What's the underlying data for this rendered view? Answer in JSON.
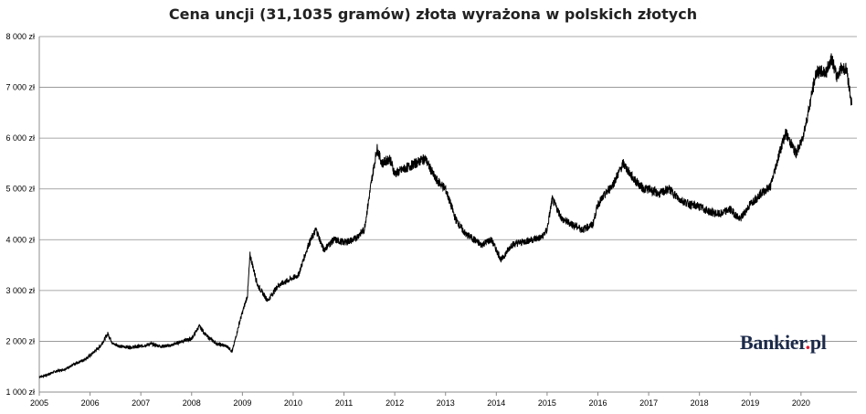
{
  "title": "Cena uncji (31,1035 gramów) złota wyrażona w polskich złotych",
  "brand": {
    "name": "Bankier",
    "dot": ".",
    "suffix": "pl"
  },
  "chart_data": {
    "type": "line",
    "title": "Cena uncji (31,1035 gramów) złota wyrażona w polskich złotych",
    "xlabel": "",
    "ylabel": "",
    "xlim": [
      2005,
      2021.1
    ],
    "ylim": [
      1000,
      8000
    ],
    "grid": "horizontal",
    "legend": "none",
    "line_color": "#000000",
    "y_ticks": [
      {
        "value": 1000,
        "label": "1 000 zł"
      },
      {
        "value": 2000,
        "label": "2 000 zł"
      },
      {
        "value": 3000,
        "label": "3 000 zł"
      },
      {
        "value": 4000,
        "label": "4 000 zł"
      },
      {
        "value": 5000,
        "label": "5 000 zł"
      },
      {
        "value": 6000,
        "label": "6 000 zł"
      },
      {
        "value": 7000,
        "label": "7 000 zł"
      },
      {
        "value": 8000,
        "label": "8 000 zł"
      }
    ],
    "x_ticks": [
      {
        "value": 2005,
        "label": "2005"
      },
      {
        "value": 2006,
        "label": "2006"
      },
      {
        "value": 2007,
        "label": "2007"
      },
      {
        "value": 2008,
        "label": "2008"
      },
      {
        "value": 2009,
        "label": "2009"
      },
      {
        "value": 2010,
        "label": "2010"
      },
      {
        "value": 2011,
        "label": "2011"
      },
      {
        "value": 2012,
        "label": "2012"
      },
      {
        "value": 2013,
        "label": "2013"
      },
      {
        "value": 2014,
        "label": "2014"
      },
      {
        "value": 2015,
        "label": "2015"
      },
      {
        "value": 2016,
        "label": "2016"
      },
      {
        "value": 2017,
        "label": "2017"
      },
      {
        "value": 2018,
        "label": "2018"
      },
      {
        "value": 2019,
        "label": "2019"
      },
      {
        "value": 2020,
        "label": "2020"
      }
    ],
    "series": [
      {
        "x": [
          2005.0,
          2005.1,
          2005.3,
          2005.5,
          2005.7,
          2005.9,
          2006.0,
          2006.2,
          2006.35,
          2006.45,
          2006.6,
          2006.8,
          2007.0,
          2007.2,
          2007.4,
          2007.6,
          2007.8,
          2008.0,
          2008.15,
          2008.3,
          2008.5,
          2008.7,
          2008.8,
          2008.95,
          2009.1,
          2009.15,
          2009.3,
          2009.5,
          2009.7,
          2009.9,
          2010.1,
          2010.3,
          2010.45,
          2010.6,
          2010.8,
          2011.0,
          2011.2,
          2011.4,
          2011.55,
          2011.65,
          2011.75,
          2011.9,
          2012.0,
          2012.2,
          2012.4,
          2012.6,
          2012.8,
          2013.0,
          2013.2,
          2013.4,
          2013.5,
          2013.7,
          2013.9,
          2014.0,
          2014.1,
          2014.3,
          2014.5,
          2014.7,
          2014.9,
          2015.0,
          2015.1,
          2015.3,
          2015.5,
          2015.7,
          2015.9,
          2016.0,
          2016.3,
          2016.5,
          2016.7,
          2016.9,
          2017.0,
          2017.2,
          2017.4,
          2017.6,
          2017.8,
          2018.0,
          2018.2,
          2018.4,
          2018.6,
          2018.8,
          2019.0,
          2019.2,
          2019.4,
          2019.6,
          2019.7,
          2019.9,
          2020.0,
          2020.1,
          2020.2,
          2020.3,
          2020.5,
          2020.6,
          2020.7,
          2020.8,
          2020.9,
          2021.0
        ],
        "y": [
          1300,
          1320,
          1400,
          1450,
          1550,
          1650,
          1720,
          1900,
          2150,
          1950,
          1900,
          1880,
          1900,
          1950,
          1900,
          1920,
          2000,
          2050,
          2300,
          2100,
          1950,
          1900,
          1800,
          2400,
          2900,
          3700,
          3100,
          2800,
          3100,
          3200,
          3300,
          3900,
          4200,
          3800,
          4000,
          3950,
          4000,
          4200,
          5200,
          5800,
          5500,
          5600,
          5300,
          5400,
          5500,
          5600,
          5200,
          5000,
          4400,
          4100,
          4050,
          3900,
          4000,
          3800,
          3600,
          3900,
          3950,
          4000,
          4050,
          4200,
          4800,
          4400,
          4300,
          4200,
          4300,
          4700,
          5100,
          5500,
          5200,
          5000,
          5000,
          4900,
          5000,
          4800,
          4700,
          4650,
          4550,
          4500,
          4600,
          4400,
          4700,
          4900,
          5050,
          5800,
          6100,
          5700,
          5900,
          6300,
          6800,
          7300,
          7300,
          7600,
          7200,
          7400,
          7350,
          6650
        ]
      }
    ]
  }
}
